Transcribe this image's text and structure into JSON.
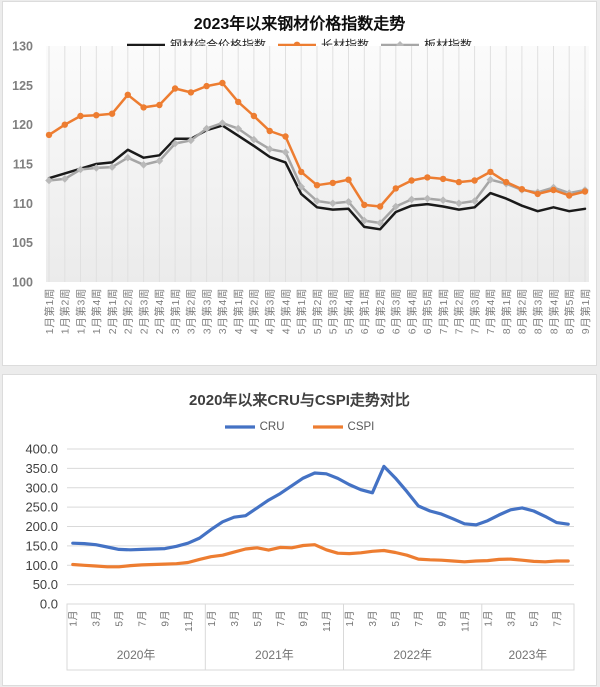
{
  "page": {
    "background": "#ececec"
  },
  "colors": {
    "composite_black": "#1a1a1a",
    "long_orange": "#ED7D31",
    "plate_gray": "#A6A6A6",
    "cru_blue": "#4472C4",
    "cspi_orange": "#ED7D31",
    "grid_light": "#e0e0e0",
    "grid_gray": "#d9d9d9"
  },
  "chart_data": [
    {
      "type": "line",
      "title": "2023年以来钢材价格指数走势",
      "legend_position": "top",
      "grid": "vertical",
      "ylim": [
        100,
        130
      ],
      "yticks": [
        100,
        105,
        110,
        115,
        120,
        125,
        130
      ],
      "categories": [
        "1月第1周",
        "1月第2周",
        "1月第3周",
        "1月第4周",
        "2月第1周",
        "2月第2周",
        "2月第3周",
        "2月第4周",
        "3月第1周",
        "3月第2周",
        "3月第3周",
        "3月第4周",
        "4月第1周",
        "4月第2周",
        "4月第3周",
        "4月第4周",
        "5月第1周",
        "5月第2周",
        "5月第3周",
        "5月第4周",
        "6月第1周",
        "6月第2周",
        "6月第3周",
        "6月第4周",
        "6月第5周",
        "7月第1周",
        "7月第2周",
        "7月第3周",
        "7月第4周",
        "8月第1周",
        "8月第2周",
        "8月第3周",
        "8月第4周",
        "8月第5周",
        "9月第1周"
      ],
      "series": [
        {
          "name": "钢材综合价格指数",
          "color": "#1a1a1a",
          "marker": "none",
          "values": [
            113.2,
            113.8,
            114.4,
            115.0,
            115.2,
            116.8,
            115.8,
            116.1,
            118.2,
            118.2,
            119.3,
            119.9,
            118.6,
            117.3,
            115.9,
            115.2,
            111.2,
            109.5,
            109.2,
            109.3,
            107.0,
            106.7,
            108.9,
            109.7,
            109.9,
            109.6,
            109.2,
            109.5,
            111.3,
            110.6,
            109.7,
            109.0,
            109.5,
            109.0,
            109.3
          ]
        },
        {
          "name": "长材指数",
          "color": "#ED7D31",
          "marker": "circle",
          "values": [
            118.7,
            120.0,
            121.1,
            121.2,
            121.4,
            123.8,
            122.2,
            122.5,
            124.6,
            124.1,
            124.9,
            125.3,
            122.9,
            121.1,
            119.2,
            118.5,
            114.0,
            112.3,
            112.6,
            113.0,
            109.8,
            109.6,
            111.9,
            112.9,
            113.3,
            113.1,
            112.7,
            112.9,
            114.0,
            112.7,
            111.8,
            111.2,
            111.7,
            111.0,
            111.5
          ]
        },
        {
          "name": "板材指数",
          "color": "#A6A6A6",
          "marker": "diamond",
          "marker_fill": "#b9b9b9",
          "values": [
            112.9,
            113.1,
            114.3,
            114.5,
            114.6,
            115.8,
            114.9,
            115.4,
            117.6,
            118.0,
            119.5,
            120.2,
            119.5,
            118.1,
            116.9,
            116.5,
            112.1,
            110.3,
            110.0,
            110.2,
            107.8,
            107.5,
            109.6,
            110.5,
            110.6,
            110.4,
            110.0,
            110.3,
            113.0,
            112.5,
            111.7,
            111.4,
            112.0,
            111.3,
            111.7
          ]
        }
      ]
    },
    {
      "type": "line",
      "title": "2020年以来CRU与CSPI走势对比",
      "legend_position": "top",
      "grid": "horizontal",
      "ylim": [
        0,
        400
      ],
      "yticks": [
        0,
        50,
        100,
        150,
        200,
        250,
        300,
        350,
        400
      ],
      "ytick_labels": [
        "0.0",
        "50.0",
        "100.0",
        "150.0",
        "200.0",
        "250.0",
        "300.0",
        "350.0",
        "400.0"
      ],
      "years": [
        {
          "label": "2020年",
          "months": 12
        },
        {
          "label": "2021年",
          "months": 12
        },
        {
          "label": "2022年",
          "months": 12
        },
        {
          "label": "2023年",
          "months": 8
        }
      ],
      "xticks": [
        {
          "i": 0,
          "label": "1月"
        },
        {
          "i": 2,
          "label": "3月"
        },
        {
          "i": 4,
          "label": "5月"
        },
        {
          "i": 6,
          "label": "7月"
        },
        {
          "i": 8,
          "label": "9月"
        },
        {
          "i": 10,
          "label": "11月"
        },
        {
          "i": 12,
          "label": "1月"
        },
        {
          "i": 14,
          "label": "3月"
        },
        {
          "i": 16,
          "label": "5月"
        },
        {
          "i": 18,
          "label": "7月"
        },
        {
          "i": 20,
          "label": "9月"
        },
        {
          "i": 22,
          "label": "11月"
        },
        {
          "i": 24,
          "label": "1月"
        },
        {
          "i": 26,
          "label": "3月"
        },
        {
          "i": 28,
          "label": "5月"
        },
        {
          "i": 30,
          "label": "7月"
        },
        {
          "i": 32,
          "label": "9月"
        },
        {
          "i": 34,
          "label": "11月"
        },
        {
          "i": 36,
          "label": "1月"
        },
        {
          "i": 38,
          "label": "3月"
        },
        {
          "i": 40,
          "label": "5月"
        },
        {
          "i": 42,
          "label": "7月"
        }
      ],
      "series": [
        {
          "name": "CRU",
          "color": "#4472C4",
          "marker": "none",
          "values": [
            157,
            156,
            153,
            147,
            141,
            140,
            141,
            142,
            143,
            149,
            157,
            170,
            192,
            212,
            224,
            228,
            248,
            268,
            285,
            305,
            325,
            338,
            336,
            324,
            308,
            295,
            287,
            355,
            325,
            290,
            253,
            240,
            232,
            220,
            207,
            204,
            215,
            230,
            243,
            248,
            240,
            226,
            210,
            206
          ]
        },
        {
          "name": "CSPI",
          "color": "#ED7D31",
          "marker": "none",
          "values": [
            102,
            100,
            98,
            96,
            96,
            99,
            101,
            102,
            103,
            104,
            107,
            115,
            122,
            126,
            134,
            142,
            145,
            139,
            146,
            145,
            151,
            153,
            140,
            131,
            130,
            132,
            136,
            138,
            133,
            126,
            116,
            114,
            113,
            111,
            109,
            111,
            112,
            115,
            116,
            113,
            110,
            109,
            111,
            111
          ]
        }
      ]
    }
  ]
}
